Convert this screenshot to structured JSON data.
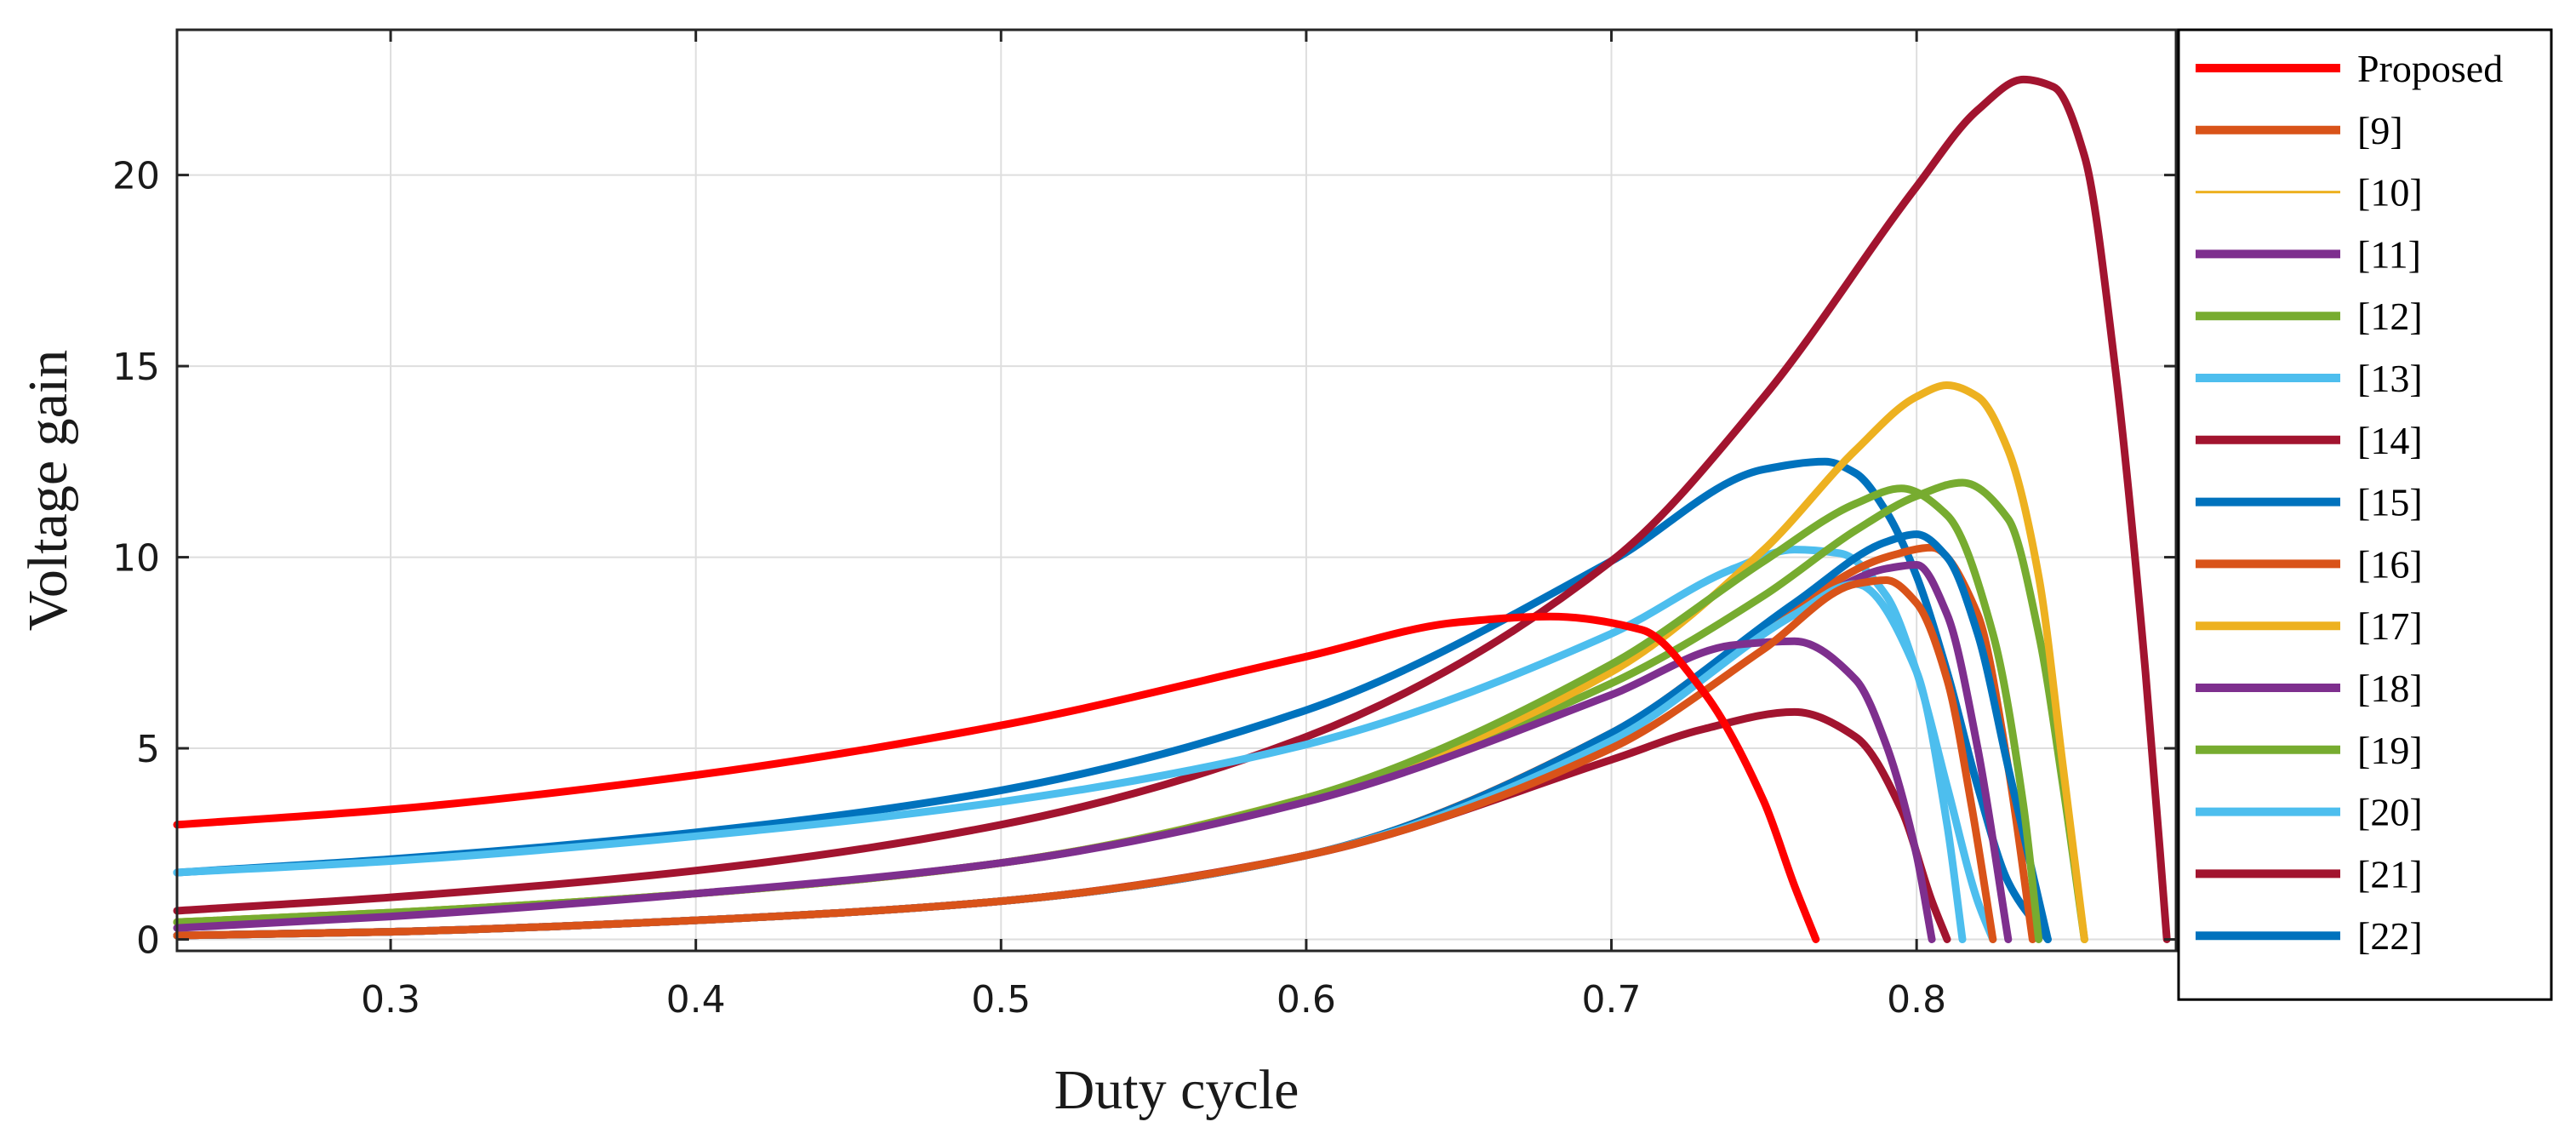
{
  "chart_data": {
    "type": "line",
    "xlabel": "Duty cycle",
    "ylabel": "Voltage gain",
    "xlim": [
      0.23,
      0.885
    ],
    "ylim": [
      -0.3,
      23.8
    ],
    "xticks": [
      0.3,
      0.4,
      0.5,
      0.6,
      0.7,
      0.8
    ],
    "yticks": [
      0,
      5,
      10,
      15,
      20
    ],
    "xtick_labels": [
      "0.3",
      "0.4",
      "0.5",
      "0.6",
      "0.7",
      "0.8"
    ],
    "ytick_labels": [
      "0",
      "5",
      "10",
      "15",
      "20"
    ],
    "grid": true,
    "legend_position": "right-outside",
    "series": [
      {
        "name": "Proposed",
        "color": "#ff0000",
        "thick": true,
        "x": [
          0.23,
          0.3,
          0.4,
          0.5,
          0.6,
          0.65,
          0.68,
          0.71,
          0.73,
          0.75,
          0.76,
          0.767
        ],
        "y": [
          3.0,
          3.4,
          4.3,
          5.6,
          7.4,
          8.3,
          8.45,
          8.1,
          6.5,
          3.6,
          1.4,
          0
        ]
      },
      {
        "name": "[9]",
        "color": "#d95319",
        "thick": true,
        "x": [
          0.23,
          0.3,
          0.4,
          0.5,
          0.6,
          0.7,
          0.75,
          0.78,
          0.79,
          0.8,
          0.81,
          0.818,
          0.825
        ],
        "y": [
          0.1,
          0.2,
          0.5,
          1.0,
          2.2,
          5.0,
          7.6,
          9.3,
          9.4,
          8.8,
          6.8,
          3.5,
          0
        ]
      },
      {
        "name": "[10]",
        "color": "#edb120",
        "thick": false,
        "x": [
          0.23,
          0.3,
          0.4,
          0.5,
          0.6,
          0.7,
          0.75,
          0.78,
          0.79,
          0.8,
          0.81,
          0.818,
          0.825
        ],
        "y": [
          0.1,
          0.2,
          0.5,
          1.0,
          2.2,
          5.0,
          7.6,
          9.3,
          9.4,
          8.8,
          6.8,
          3.5,
          0
        ]
      },
      {
        "name": "[11]",
        "color": "#7e2f8e",
        "thick": true,
        "x": [
          0.23,
          0.3,
          0.4,
          0.5,
          0.6,
          0.7,
          0.74,
          0.76,
          0.78,
          0.79,
          0.8,
          0.805
        ],
        "y": [
          0.3,
          0.6,
          1.2,
          2.0,
          3.6,
          6.4,
          7.7,
          7.8,
          6.8,
          5.1,
          2.2,
          0
        ]
      },
      {
        "name": "[12]",
        "color": "#77ac30",
        "thick": true,
        "x": [
          0.23,
          0.3,
          0.4,
          0.5,
          0.6,
          0.7,
          0.75,
          0.78,
          0.795,
          0.81,
          0.825,
          0.835,
          0.84
        ],
        "y": [
          0.45,
          0.7,
          1.2,
          2.0,
          3.7,
          7.2,
          9.9,
          11.4,
          11.8,
          11.1,
          8.0,
          3.5,
          0
        ]
      },
      {
        "name": "[13]",
        "color": "#4dbeee",
        "thick": true,
        "x": [
          0.23,
          0.3,
          0.4,
          0.5,
          0.6,
          0.7,
          0.76,
          0.78,
          0.8,
          0.81,
          0.815
        ],
        "y": [
          0.1,
          0.2,
          0.5,
          1.0,
          2.2,
          5.2,
          8.5,
          9.3,
          7.0,
          3.0,
          0
        ]
      },
      {
        "name": "[14]",
        "color": "#a2142f",
        "thick": true,
        "x": [
          0.23,
          0.3,
          0.4,
          0.5,
          0.6,
          0.7,
          0.73,
          0.76,
          0.78,
          0.795,
          0.805,
          0.81
        ],
        "y": [
          0.1,
          0.2,
          0.5,
          1.0,
          2.2,
          4.7,
          5.5,
          5.95,
          5.3,
          3.4,
          1.0,
          0
        ]
      },
      {
        "name": "[15]",
        "color": "#0072bd",
        "thick": true,
        "x": [
          0.23,
          0.3,
          0.4,
          0.5,
          0.6,
          0.7,
          0.76,
          0.79,
          0.8,
          0.81,
          0.82,
          0.83,
          0.843
        ],
        "y": [
          0.1,
          0.2,
          0.5,
          1.0,
          2.2,
          5.4,
          8.8,
          10.4,
          10.6,
          10.0,
          8.0,
          4.5,
          0
        ]
      },
      {
        "name": "[16]",
        "color": "#d95319",
        "thick": true,
        "x": [
          0.23,
          0.3,
          0.4,
          0.5,
          0.6,
          0.7,
          0.76,
          0.79,
          0.805,
          0.82,
          0.83,
          0.838
        ],
        "y": [
          0.1,
          0.2,
          0.5,
          1.0,
          2.2,
          5.4,
          8.7,
          10.0,
          10.25,
          8.5,
          4.5,
          0
        ]
      },
      {
        "name": "[17]",
        "color": "#edb120",
        "thick": true,
        "x": [
          0.23,
          0.3,
          0.4,
          0.5,
          0.6,
          0.7,
          0.75,
          0.78,
          0.8,
          0.81,
          0.82,
          0.83,
          0.84,
          0.848,
          0.855
        ],
        "y": [
          0.45,
          0.7,
          1.2,
          2.0,
          3.7,
          7.0,
          10.2,
          12.8,
          14.2,
          14.5,
          14.2,
          12.8,
          9.5,
          4.5,
          0
        ]
      },
      {
        "name": "[18]",
        "color": "#7e2f8e",
        "thick": true,
        "x": [
          0.23,
          0.3,
          0.4,
          0.5,
          0.6,
          0.7,
          0.76,
          0.79,
          0.8,
          0.81,
          0.82,
          0.83
        ],
        "y": [
          0.1,
          0.2,
          0.5,
          1.0,
          2.2,
          5.3,
          8.5,
          9.7,
          9.8,
          8.5,
          5.0,
          0
        ]
      },
      {
        "name": "[19]",
        "color": "#77ac30",
        "thick": true,
        "x": [
          0.23,
          0.3,
          0.4,
          0.5,
          0.6,
          0.7,
          0.75,
          0.78,
          0.8,
          0.815,
          0.83,
          0.84,
          0.848,
          0.855
        ],
        "y": [
          0.45,
          0.7,
          1.2,
          2.0,
          3.7,
          6.7,
          9.0,
          10.7,
          11.6,
          11.95,
          11.0,
          8.0,
          4.0,
          0
        ]
      },
      {
        "name": "[20]",
        "color": "#4dbeee",
        "thick": true,
        "x": [
          0.23,
          0.3,
          0.4,
          0.5,
          0.6,
          0.7,
          0.74,
          0.76,
          0.775,
          0.79,
          0.8,
          0.81,
          0.82,
          0.825
        ],
        "y": [
          1.75,
          2.05,
          2.7,
          3.6,
          5.1,
          8.0,
          9.7,
          10.2,
          10.1,
          9.0,
          7.0,
          4.0,
          1.0,
          0
        ]
      },
      {
        "name": "[21]",
        "color": "#a2142f",
        "thick": true,
        "x": [
          0.23,
          0.3,
          0.4,
          0.5,
          0.6,
          0.7,
          0.75,
          0.8,
          0.82,
          0.835,
          0.845,
          0.855,
          0.865,
          0.875,
          0.882
        ],
        "y": [
          0.75,
          1.1,
          1.8,
          3.0,
          5.3,
          9.9,
          14.2,
          19.7,
          21.7,
          22.5,
          22.3,
          20.5,
          15.0,
          7.0,
          0
        ]
      },
      {
        "name": "[22]",
        "color": "#0072bd",
        "thick": true,
        "x": [
          0.23,
          0.3,
          0.4,
          0.5,
          0.6,
          0.7,
          0.75,
          0.77,
          0.78,
          0.79,
          0.8,
          0.81,
          0.82,
          0.83,
          0.843
        ],
        "y": [
          1.75,
          2.1,
          2.8,
          3.9,
          6.0,
          9.9,
          12.3,
          12.5,
          12.2,
          11.2,
          9.5,
          7.0,
          4.0,
          1.5,
          0
        ]
      }
    ]
  }
}
